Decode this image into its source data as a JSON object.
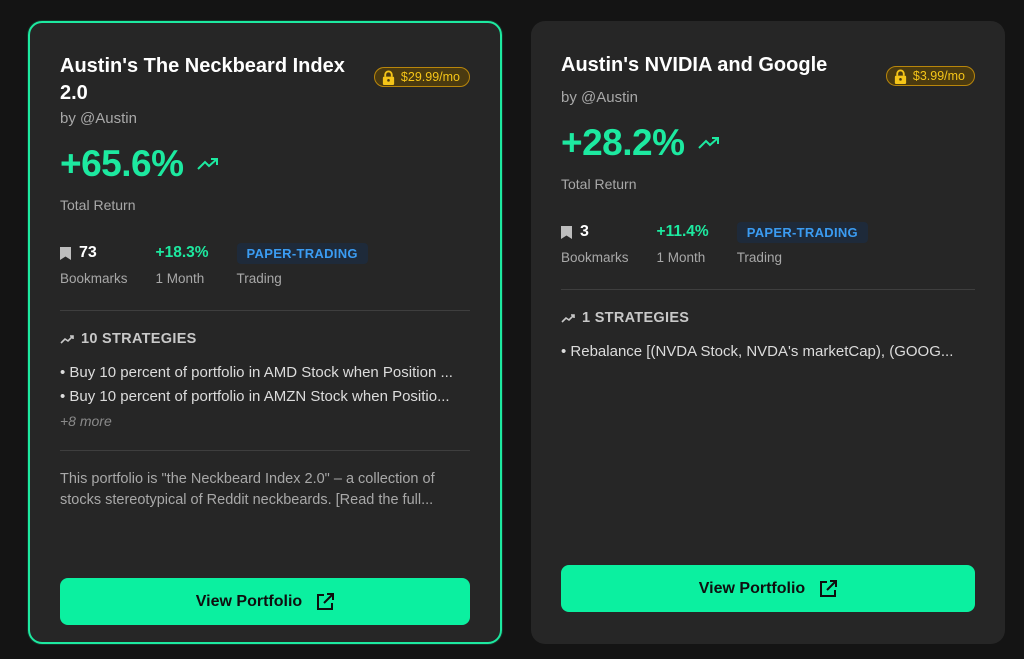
{
  "cards": [
    {
      "title": "Austin's The Neckbeard Index 2.0",
      "price": "$29.99/mo",
      "author": "by @Austin",
      "total_return": "+65.6%",
      "total_return_label": "Total Return",
      "bookmarks": "73",
      "bookmarks_label": "Bookmarks",
      "month_return": "+18.3%",
      "month_label": "1 Month",
      "trading_badge": "PAPER-TRADING",
      "trading_label": "Trading",
      "strategies_heading": "10 STRATEGIES",
      "strategies": [
        "• Buy 10 percent of portfolio in AMD Stock when Position ...",
        "• Buy 10 percent of portfolio in AMZN Stock when Positio..."
      ],
      "more": "+8 more",
      "description": "This portfolio is \"the Neckbeard Index 2.0\" – a collection of stocks stereotypical of Reddit neckbeards. [Read the full...",
      "button_label": "View Portfolio"
    },
    {
      "title": "Austin's NVIDIA and Google",
      "price": "$3.99/mo",
      "author": "by @Austin",
      "total_return": "+28.2%",
      "total_return_label": "Total Return",
      "bookmarks": "3",
      "bookmarks_label": "Bookmarks",
      "month_return": "+11.4%",
      "month_label": "1 Month",
      "trading_badge": "PAPER-TRADING",
      "trading_label": "Trading",
      "strategies_heading": "1 STRATEGIES",
      "strategies": [
        "• Rebalance [(NVDA Stock, NVDA's marketCap), (GOOG..."
      ],
      "button_label": "View Portfolio"
    }
  ],
  "colors": {
    "accent": "#1de9a0",
    "button": "#0bf0a0",
    "price_text": "#f5c518",
    "badge_text": "#3b9cf2",
    "card_bg": "#262626",
    "page_bg": "#141414"
  },
  "icons": [
    "lock-icon",
    "trending-up-icon",
    "bookmark-icon",
    "external-link-icon"
  ]
}
